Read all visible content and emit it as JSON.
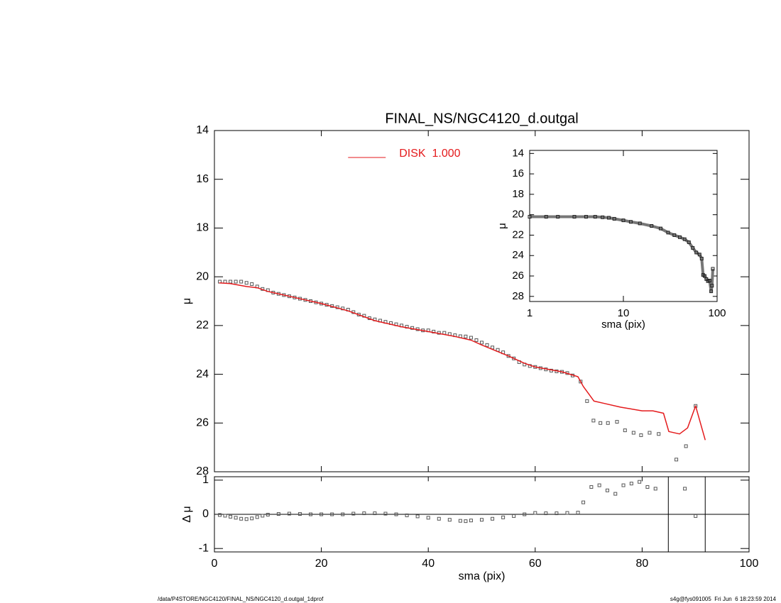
{
  "chart_data": [
    {
      "type": "scatter",
      "title": "FINAL_NS/NGC4120_d.outgal",
      "ylabel": "μ",
      "xlim": [
        0,
        100
      ],
      "ylim": [
        28,
        14
      ],
      "xticks": [
        0,
        20,
        40,
        60,
        80,
        100
      ],
      "xtick_labels": false,
      "yticks": [
        14,
        16,
        18,
        20,
        22,
        24,
        26,
        28
      ],
      "legend": "upper left",
      "series": [
        {
          "color": "#555555",
          "style": "square",
          "x": [
            1,
            2,
            3,
            4,
            5,
            6,
            7,
            8,
            9,
            10,
            11,
            12,
            13,
            14,
            15,
            16,
            17,
            18,
            19,
            20,
            21,
            22,
            23,
            24,
            25,
            26,
            27,
            28,
            29,
            30,
            31,
            32,
            33,
            34,
            35,
            36,
            37,
            38,
            39,
            40,
            41,
            42,
            43,
            44,
            45,
            46,
            47,
            48,
            49,
            50,
            51,
            52,
            53,
            54,
            55,
            56,
            57,
            58,
            59,
            60,
            61,
            62,
            63,
            64,
            65,
            66,
            67,
            68.5,
            69.7,
            70.9,
            72.2,
            73.6,
            75.3,
            76.8,
            78.4,
            79.8,
            81.4,
            83.1,
            86.4,
            88.2,
            90
          ],
          "values": [
            20.2,
            20.2,
            20.2,
            20.2,
            20.2,
            20.25,
            20.3,
            20.4,
            20.5,
            20.55,
            20.65,
            20.7,
            20.75,
            20.8,
            20.85,
            20.9,
            20.95,
            21.0,
            21.05,
            21.1,
            21.15,
            21.2,
            21.25,
            21.3,
            21.35,
            21.45,
            21.55,
            21.6,
            21.7,
            21.75,
            21.8,
            21.85,
            21.9,
            21.95,
            22.0,
            22.05,
            22.1,
            22.15,
            22.2,
            22.2,
            22.25,
            22.3,
            22.3,
            22.35,
            22.4,
            22.44,
            22.45,
            22.5,
            22.6,
            22.7,
            22.8,
            22.9,
            23.0,
            23.1,
            23.25,
            23.35,
            23.5,
            23.6,
            23.66,
            23.7,
            23.75,
            23.8,
            23.85,
            23.88,
            23.9,
            23.95,
            24.05,
            24.3,
            25.1,
            25.9,
            26.0,
            26.0,
            25.95,
            26.3,
            26.4,
            26.5,
            26.4,
            26.45,
            27.5,
            26.95,
            25.3
          ]
        },
        {
          "name": "DISK  1.000",
          "color": "#e41a1c",
          "style": "line",
          "x": [
            0.9,
            3,
            6,
            8,
            10,
            15,
            20,
            25,
            30,
            35,
            40,
            45,
            48,
            50,
            55,
            58,
            60,
            65,
            68,
            69,
            70,
            71,
            73,
            76,
            80,
            82,
            84,
            85,
            87,
            88.5,
            90,
            91.8
          ],
          "values": [
            20.25,
            20.28,
            20.4,
            20.45,
            20.6,
            20.85,
            21.1,
            21.4,
            21.8,
            22.05,
            22.25,
            22.45,
            22.6,
            22.8,
            23.25,
            23.55,
            23.7,
            23.9,
            24.1,
            24.5,
            24.8,
            25.1,
            25.2,
            25.35,
            25.5,
            25.5,
            25.6,
            26.35,
            26.45,
            26.2,
            25.3,
            26.7
          ]
        }
      ]
    },
    {
      "type": "scatter",
      "xlabel": "sma (pix)",
      "ylabel": "Δ μ",
      "xlim": [
        0,
        100
      ],
      "ylim": [
        -1.1,
        1.1
      ],
      "xticks": [
        0,
        20,
        40,
        60,
        80,
        100
      ],
      "yticks": [
        -1,
        0,
        1
      ],
      "hlines": [
        0
      ],
      "vlines": [
        84.9,
        91.8
      ],
      "series": [
        {
          "color": "#555555",
          "style": "square",
          "x": [
            1,
            2,
            3,
            4,
            5,
            6,
            7,
            8,
            9,
            10,
            12,
            14,
            16,
            18,
            20,
            22,
            24,
            26,
            28,
            30,
            32,
            34,
            36,
            38,
            40,
            42,
            44,
            46,
            47,
            48,
            50,
            52,
            54,
            56,
            58,
            60,
            62,
            64,
            66,
            68,
            69,
            70.5,
            72,
            73.5,
            75,
            76.5,
            78,
            79.5,
            81,
            82.5,
            88,
            90
          ],
          "values": [
            -0.02,
            -0.04,
            -0.07,
            -0.1,
            -0.13,
            -0.14,
            -0.12,
            -0.08,
            -0.04,
            -0.01,
            0.01,
            0.02,
            0.01,
            0.0,
            0.0,
            0.0,
            0.0,
            0.02,
            0.03,
            0.03,
            0.02,
            0.0,
            -0.03,
            -0.06,
            -0.1,
            -0.13,
            -0.16,
            -0.19,
            -0.2,
            -0.18,
            -0.16,
            -0.13,
            -0.09,
            -0.05,
            0.0,
            0.04,
            0.03,
            0.03,
            0.04,
            0.05,
            0.35,
            0.8,
            0.85,
            0.7,
            0.6,
            0.85,
            0.9,
            0.95,
            0.8,
            0.75,
            0.75,
            -0.05
          ]
        }
      ]
    },
    {
      "type": "scatter",
      "xlabel": "sma (pix)",
      "ylabel": "μ",
      "xscale": "log",
      "xlim": [
        1,
        100
      ],
      "ylim": [
        28.5,
        13.7
      ],
      "xticks": [
        1,
        10,
        100
      ],
      "yticks": [
        14,
        16,
        18,
        20,
        22,
        24,
        26,
        28
      ],
      "series": [
        {
          "color": "#777777",
          "style": "line-square",
          "x": [
            1,
            1.5,
            2,
            3,
            4,
            5,
            6,
            7,
            8,
            10,
            12,
            15,
            20,
            25,
            30,
            35,
            40,
            45,
            50,
            55,
            60,
            65,
            68.5,
            70.9,
            73.6,
            76.8,
            79.8,
            83.1,
            86.4,
            88.2,
            90
          ],
          "values": [
            20.2,
            20.2,
            20.2,
            20.2,
            20.2,
            20.2,
            20.25,
            20.3,
            20.4,
            20.55,
            20.7,
            20.85,
            21.1,
            21.35,
            21.75,
            22.0,
            22.2,
            22.4,
            22.7,
            23.25,
            23.7,
            23.9,
            24.3,
            25.9,
            26.0,
            26.3,
            26.5,
            26.45,
            27.5,
            26.95,
            25.3
          ]
        }
      ]
    }
  ],
  "footer": {
    "left": "/data/P4STORE/NGC4120/FINAL_NS/NGC4120_d.outgal_1dprof",
    "right": "s4g@fys091005  Fri Jun  6 18:23:59 2014"
  }
}
